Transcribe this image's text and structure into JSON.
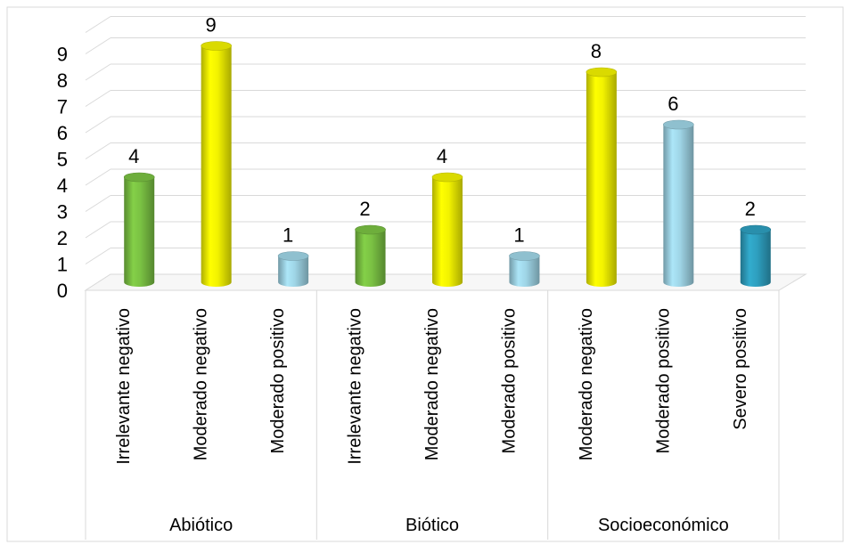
{
  "chart_data": {
    "type": "bar",
    "style": "3d-cylinder",
    "title": "",
    "xlabel": "",
    "ylabel": "",
    "ylim": [
      0,
      9
    ],
    "y_ticks": [
      "0",
      "1",
      "2",
      "3",
      "4",
      "5",
      "6",
      "7",
      "8",
      "9"
    ],
    "grid": true,
    "legend": "none",
    "groups": [
      {
        "name": "Abiótico",
        "bars": [
          {
            "label": "Irrelevante negativo",
            "value": 4,
            "value_label": "4",
            "color": "#7ac143"
          },
          {
            "label": "Moderado negativo",
            "value": 9,
            "value_label": "9",
            "color": "#f2f200"
          },
          {
            "label": "Moderado positivo",
            "value": 1,
            "value_label": "1",
            "color": "#9fd5e6"
          }
        ]
      },
      {
        "name": "Biótico",
        "bars": [
          {
            "label": "Irrelevante negativo",
            "value": 2,
            "value_label": "2",
            "color": "#7ac143"
          },
          {
            "label": "Moderado negativo",
            "value": 4,
            "value_label": "4",
            "color": "#f2f200"
          },
          {
            "label": "Moderado positivo",
            "value": 1,
            "value_label": "1",
            "color": "#9fd5e6"
          }
        ]
      },
      {
        "name": "Socioeconómico",
        "bars": [
          {
            "label": "Moderado negativo",
            "value": 8,
            "value_label": "8",
            "color": "#f2f200"
          },
          {
            "label": "Moderado positivo",
            "value": 6,
            "value_label": "6",
            "color": "#9fd5e6"
          },
          {
            "label": "Severo positivo",
            "value": 2,
            "value_label": "2",
            "color": "#2e9fbf"
          }
        ]
      }
    ]
  }
}
